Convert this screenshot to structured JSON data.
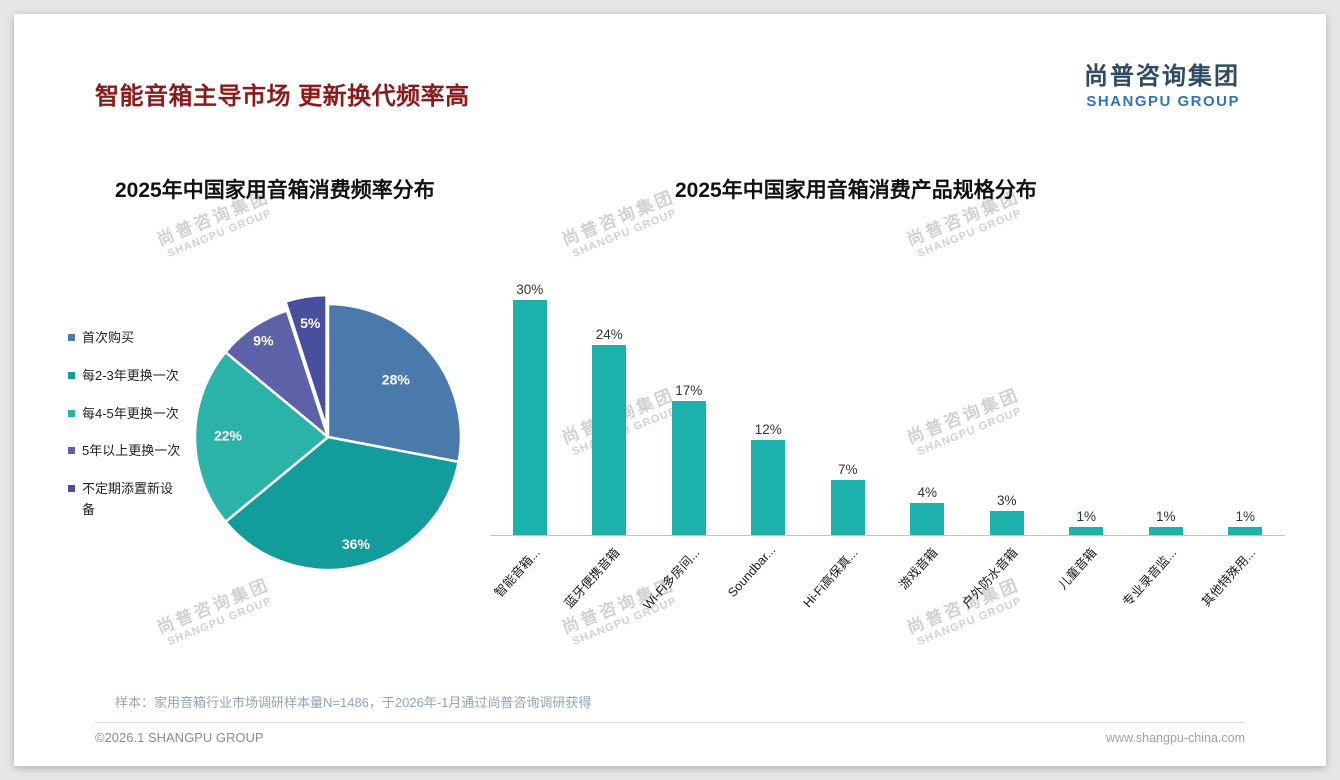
{
  "page": {
    "title": "智能音箱主导市场 更新换代频率高",
    "title_color": "#8B1A1A",
    "logo": {
      "cn": "尚普咨询集团",
      "en": "SHANGPU GROUP",
      "cn_color": "#2F4A63",
      "en_color": "#2E75B6"
    },
    "watermark": {
      "cn": "尚普咨询集团",
      "en": "SHANGPU GROUP",
      "color": "#C2C2C2"
    },
    "footer": {
      "sample_note": "样本：家用音箱行业市场调研样本量N=1486，于2026年-1月通过尚普咨询调研获得",
      "copyright": "©2026.1 SHANGPU GROUP",
      "website": "www.shangpu-china.com"
    }
  },
  "chart_data": [
    {
      "type": "pie",
      "title": "2025年中国家用音箱消费频率分布",
      "labels": [
        "首次购买",
        "每2-3年更换一次",
        "每4-5年更换一次",
        "5年以上更换一次",
        "不定期添置新设备"
      ],
      "values": [
        28,
        36,
        22,
        9,
        5
      ],
      "value_labels": [
        "28%",
        "36%",
        "22%",
        "9%",
        "5%"
      ],
      "colors": [
        "#4A79AB",
        "#139C9C",
        "#2BB3AA",
        "#5C61A8",
        "#474F9E"
      ],
      "legend_position": "left",
      "start_angle_deg": 0,
      "direction": "clockwise",
      "exploded_index": 4,
      "slice_border_color": "#FFFFFF"
    },
    {
      "type": "bar",
      "title": "2025年中国家用音箱消费产品规格分布",
      "categories": [
        "智能音箱...",
        "蓝牙便携音箱",
        "Wi-Fi多房间...",
        "Soundbar...",
        "Hi-Fi高保真...",
        "游戏音箱",
        "户外防水音箱",
        "儿童音箱",
        "专业录音监...",
        "其他特殊用..."
      ],
      "values": [
        30,
        24,
        17,
        12,
        7,
        4,
        3,
        1,
        1,
        1
      ],
      "value_labels": [
        "30%",
        "24%",
        "17%",
        "12%",
        "7%",
        "4%",
        "3%",
        "1%",
        "1%",
        "1%"
      ],
      "bar_color": "#1CB2AB",
      "ylim": [
        0,
        32
      ],
      "grid": false,
      "value_label_position": "above",
      "category_label_rotation_deg": -48
    }
  ]
}
